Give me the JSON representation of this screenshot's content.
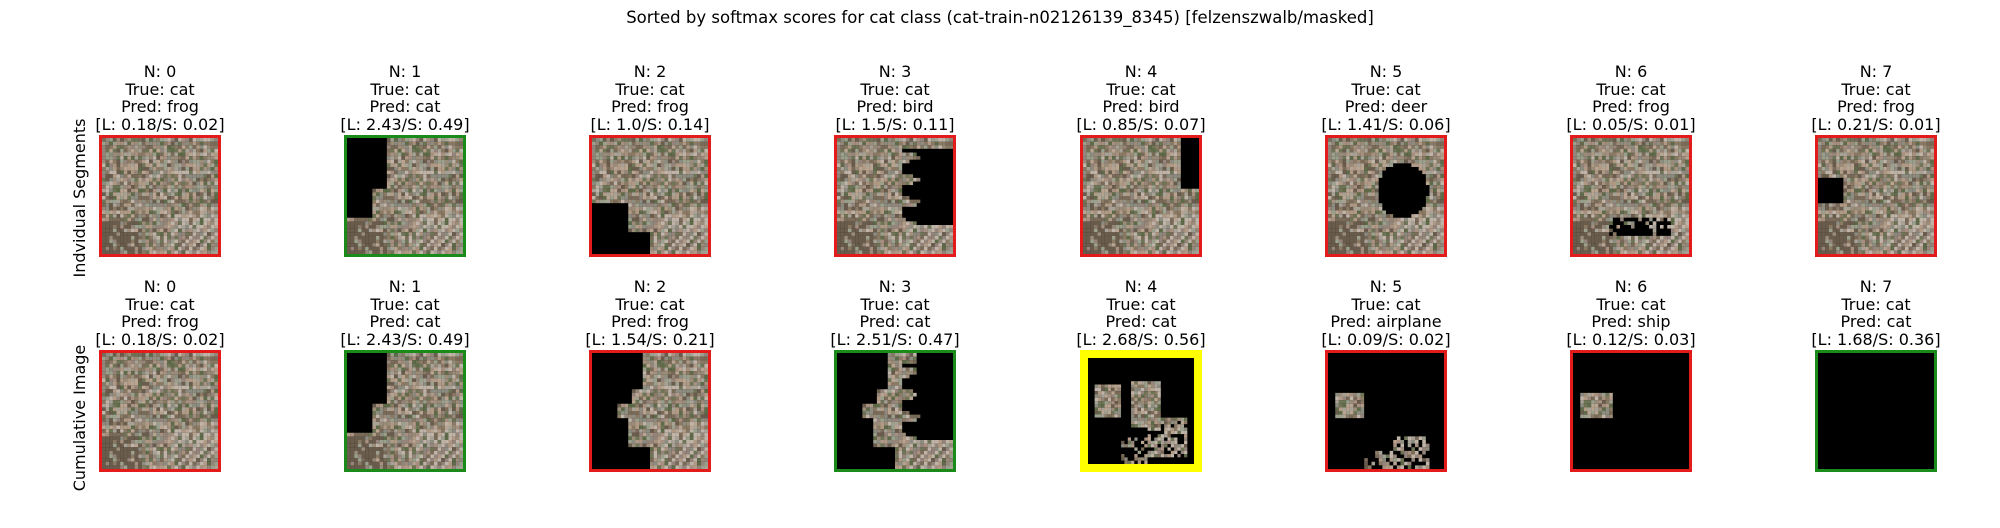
{
  "title": "Sorted by softmax scores for cat class (cat-train-n02126139_8345) [felzenszwalb/masked]",
  "colors": {
    "correct": "#1a8a1a",
    "wrong": "#e31b1b",
    "best": "#ffff00",
    "masked": "#000000"
  },
  "chart_data": {
    "type": "image_grid",
    "title": "Sorted by softmax scores for cat class (cat-train-n02126139_8345) [felzenszwalb/masked]",
    "rows": [
      {
        "label": "Indvidual Segments",
        "panels": [
          {
            "n": "N: 0",
            "true_label": "True: cat",
            "pred_label": "Pred: frog",
            "score": "[L: 0.18/S: 0.02]",
            "border": "wrong",
            "mask": "none"
          },
          {
            "n": "N: 1",
            "true_label": "True: cat",
            "pred_label": "Pred: cat",
            "score": "[L: 2.43/S: 0.49]",
            "border": "correct",
            "mask": "left"
          },
          {
            "n": "N: 2",
            "true_label": "True: cat",
            "pred_label": "Pred: frog",
            "score": "[L: 1.0/S: 0.14]",
            "border": "wrong",
            "mask": "lower-left"
          },
          {
            "n": "N: 3",
            "true_label": "True: cat",
            "pred_label": "Pred: bird",
            "score": "[L: 1.5/S: 0.11]",
            "border": "wrong",
            "mask": "right"
          },
          {
            "n": "N: 4",
            "true_label": "True: cat",
            "pred_label": "Pred: bird",
            "score": "[L: 0.85/S: 0.07]",
            "border": "wrong",
            "mask": "top-right-small"
          },
          {
            "n": "N: 5",
            "true_label": "True: cat",
            "pred_label": "Pred: deer",
            "score": "[L: 1.41/S: 0.06]",
            "border": "wrong",
            "mask": "center"
          },
          {
            "n": "N: 6",
            "true_label": "True: cat",
            "pred_label": "Pred: frog",
            "score": "[L: 0.05/S: 0.01]",
            "border": "wrong",
            "mask": "bottom-right"
          },
          {
            "n": "N: 7",
            "true_label": "True: cat",
            "pred_label": "Pred: frog",
            "score": "[L: 0.21/S: 0.01]",
            "border": "wrong",
            "mask": "small-left"
          }
        ]
      },
      {
        "label": "Cumulative Image",
        "panels": [
          {
            "n": "N: 0",
            "true_label": "True: cat",
            "pred_label": "Pred: frog",
            "score": "[L: 0.18/S: 0.02]",
            "border": "wrong",
            "mask": "none"
          },
          {
            "n": "N: 1",
            "true_label": "True: cat",
            "pred_label": "Pred: cat",
            "score": "[L: 2.43/S: 0.49]",
            "border": "correct",
            "mask": "cum1"
          },
          {
            "n": "N: 2",
            "true_label": "True: cat",
            "pred_label": "Pred: frog",
            "score": "[L: 1.54/S: 0.21]",
            "border": "wrong",
            "mask": "cum2"
          },
          {
            "n": "N: 3",
            "true_label": "True: cat",
            "pred_label": "Pred: cat",
            "score": "[L: 2.51/S: 0.47]",
            "border": "correct",
            "mask": "cum3"
          },
          {
            "n": "N: 4",
            "true_label": "True: cat",
            "pred_label": "Pred: cat",
            "score": "[L: 2.68/S: 0.56]",
            "border": "best",
            "mask": "cum4"
          },
          {
            "n": "N: 5",
            "true_label": "True: cat",
            "pred_label": "Pred: airplane",
            "score": "[L: 0.09/S: 0.02]",
            "border": "wrong",
            "mask": "cum5"
          },
          {
            "n": "N: 6",
            "true_label": "True: cat",
            "pred_label": "Pred: ship",
            "score": "[L: 0.12/S: 0.03]",
            "border": "wrong",
            "mask": "cum6"
          },
          {
            "n": "N: 7",
            "true_label": "True: cat",
            "pred_label": "Pred: cat",
            "score": "[L: 1.68/S: 0.36]",
            "border": "correct",
            "mask": "all"
          }
        ]
      }
    ]
  }
}
